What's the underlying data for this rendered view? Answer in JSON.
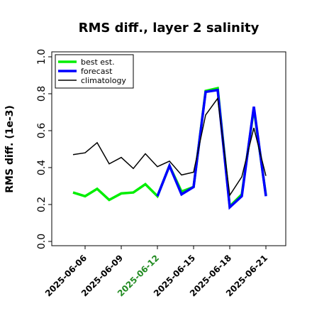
{
  "chart_data": {
    "type": "line",
    "title": "RMS diff., layer 2 salinity",
    "xlabel": "",
    "ylabel": "RMS diff. (1e-3)",
    "ylim": [
      0.0,
      1.0
    ],
    "yticks": [
      "0.0",
      "0.2",
      "0.4",
      "0.6",
      "0.8",
      "1.0"
    ],
    "xticks": [
      "2025-06-06",
      "2025-06-09",
      "2025-06-12",
      "2025-06-15",
      "2025-06-18",
      "2025-06-21"
    ],
    "highlight_tick": "2025-06-12",
    "highlight_color": "#228b22",
    "x": [
      "2025-06-05",
      "2025-06-06",
      "2025-06-07",
      "2025-06-08",
      "2025-06-09",
      "2025-06-10",
      "2025-06-11",
      "2025-06-12",
      "2025-06-13",
      "2025-06-14",
      "2025-06-15",
      "2025-06-16",
      "2025-06-17",
      "2025-06-18",
      "2025-06-19",
      "2025-06-20",
      "2025-06-21"
    ],
    "legend_position": "top-left",
    "grid": false,
    "series": [
      {
        "name": "best est.",
        "color": "#00ee00",
        "values": [
          0.265,
          0.245,
          0.285,
          0.225,
          0.26,
          0.265,
          0.31,
          0.245,
          0.41,
          0.27,
          0.295,
          0.815,
          0.83,
          0.19,
          0.255,
          0.72,
          0.25
        ]
      },
      {
        "name": "forecast",
        "color": "#0000ff",
        "values": [
          null,
          null,
          null,
          null,
          null,
          null,
          null,
          0.245,
          0.41,
          0.255,
          0.295,
          0.81,
          0.82,
          0.185,
          0.245,
          0.73,
          0.245
        ]
      },
      {
        "name": "climatology",
        "color": "#000000",
        "values": [
          0.47,
          0.48,
          0.535,
          0.42,
          0.455,
          0.395,
          0.475,
          0.405,
          0.435,
          0.36,
          0.375,
          0.685,
          0.775,
          0.25,
          0.35,
          0.615,
          0.355
        ]
      }
    ]
  }
}
